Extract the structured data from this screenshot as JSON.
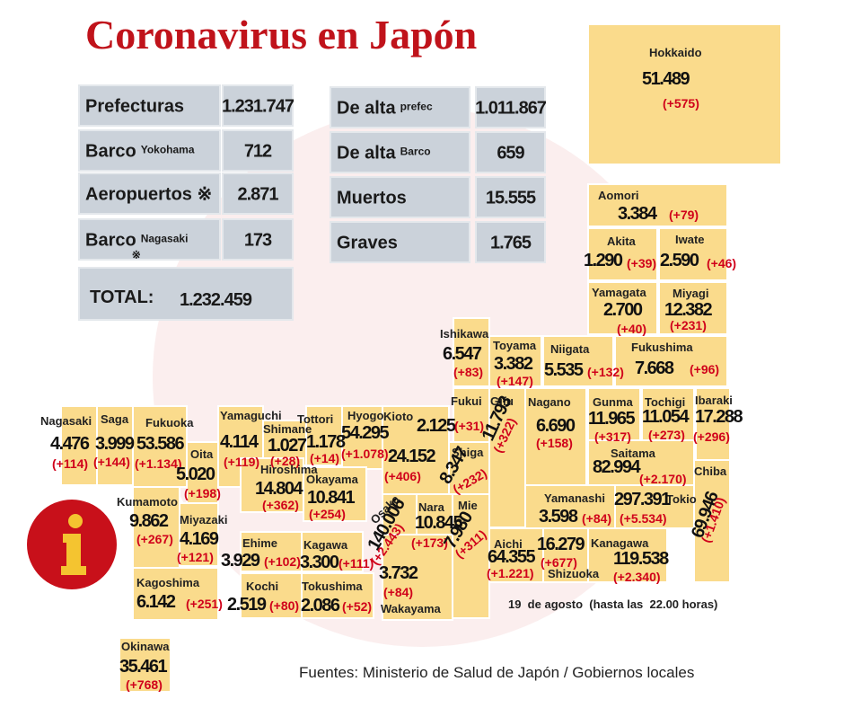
{
  "title": "Coronavirus en Japón",
  "summary": [
    {
      "label": "Prefecturas",
      "value": "1.231.747"
    },
    {
      "label": "Barco",
      "sublabel": "Yokohama",
      "value": "712"
    },
    {
      "label": "Aeropuertos ※",
      "value": "2.871"
    },
    {
      "label": "Barco",
      "sublabel": "Nagasaki",
      "mark": "※",
      "value": "173"
    },
    {
      "label": "De alta",
      "sublabel": "prefec",
      "value": "1.011.867"
    },
    {
      "label": "De alta",
      "sublabel": "Barco",
      "value": "659"
    },
    {
      "label": "Muertos",
      "value": "15.555"
    },
    {
      "label": "Graves",
      "value": "1.765"
    }
  ],
  "total": {
    "label": "TOTAL:",
    "value": "1.232.459"
  },
  "prefectures": [
    {
      "name": "Hokkaido",
      "total": "51.489",
      "new": "(+575)"
    },
    {
      "name": "Aomori",
      "total": "3.384",
      "new": "(+79)"
    },
    {
      "name": "Akita",
      "total": "1.290",
      "new": "(+39)"
    },
    {
      "name": "Iwate",
      "total": "2.590",
      "new": "(+46)"
    },
    {
      "name": "Yamagata",
      "total": "2.700",
      "new": "(+40)"
    },
    {
      "name": "Miyagi",
      "total": "12.382",
      "new": "(+231)"
    },
    {
      "name": "Ishikawa",
      "total": "6.547",
      "new": "(+83)"
    },
    {
      "name": "Toyama",
      "total": "3.382",
      "new": "(+147)"
    },
    {
      "name": "Niigata",
      "total": "5.535",
      "new": "(+132)"
    },
    {
      "name": "Fukushima",
      "total": "7.668",
      "new": "(+96)"
    },
    {
      "name": "Fukui",
      "total": "2.125",
      "new": "(+31)"
    },
    {
      "name": "Gifu",
      "total": "11.793",
      "new": "(+322)"
    },
    {
      "name": "Nagano",
      "total": "6.690",
      "new": "(+158)"
    },
    {
      "name": "Gunma",
      "total": "11.965",
      "new": "(+317)"
    },
    {
      "name": "Tochigi",
      "total": "11.054",
      "new": "(+273)"
    },
    {
      "name": "Ibaraki",
      "total": "17.288",
      "new": "(+296)"
    },
    {
      "name": "Nagasaki",
      "total": "4.476",
      "new": "(+114)"
    },
    {
      "name": "Saga",
      "total": "3.999",
      "new": "(+144)"
    },
    {
      "name": "Fukuoka",
      "total": "53.586",
      "new": "(+1.134)"
    },
    {
      "name": "Yamaguchi",
      "total": "4.114",
      "new": "(+119)"
    },
    {
      "name": "Shimane",
      "total": "1.027",
      "new": "(+28)"
    },
    {
      "name": "Tottori",
      "total": "1.178",
      "new": "(+14)"
    },
    {
      "name": "Hyogo",
      "total": "54.295",
      "new": "(+1.078)"
    },
    {
      "name": "Kioto",
      "total": "24.152",
      "new": "(+406)"
    },
    {
      "name": "Shiga",
      "total": "8.347",
      "new": "(+232)"
    },
    {
      "name": "Saitama",
      "total": "82.994",
      "new": "(+2.170)"
    },
    {
      "name": "Chiba",
      "total": "69.946",
      "new": "(+1.410)"
    },
    {
      "name": "Oita",
      "total": "5.020",
      "new": "(+198)"
    },
    {
      "name": "Hiroshima",
      "total": "14.804",
      "new": "(+362)"
    },
    {
      "name": "Okayama",
      "total": "10.841",
      "new": "(+254)"
    },
    {
      "name": "Kumamoto",
      "total": "9.862",
      "new": "(+267)"
    },
    {
      "name": "Miyazaki",
      "total": "4.169",
      "new": "(+121)"
    },
    {
      "name": "Kagoshima",
      "total": "6.142",
      "new": "(+251)"
    },
    {
      "name": "Osaka",
      "total": "140.006",
      "new": "(+2.443)"
    },
    {
      "name": "Nara",
      "total": "10.845",
      "new": "(+173)"
    },
    {
      "name": "Mie",
      "total": "7.980",
      "new": "(+311)"
    },
    {
      "name": "Yamanashi",
      "total": "3.598",
      "new": "(+84)"
    },
    {
      "name": "Tokio",
      "total": "297.391",
      "new": "(+5.534)"
    },
    {
      "name": "Aichi",
      "total": "64.355",
      "new": "(+1.221)"
    },
    {
      "name": "Shizuoka",
      "total": "16.279",
      "new": "(+677)"
    },
    {
      "name": "Kanagawa",
      "total": "119.538",
      "new": "(+2.340)"
    },
    {
      "name": "Ehime",
      "total": "3.929",
      "new": "(+102)"
    },
    {
      "name": "Kagawa",
      "total": "3.300",
      "new": "(+111)"
    },
    {
      "name": "Kochi",
      "total": "2.519",
      "new": "(+80)"
    },
    {
      "name": "Tokushima",
      "total": "2.086",
      "new": "(+52)"
    },
    {
      "name": "Wakayama",
      "total": "3.732",
      "new": "(+84)"
    },
    {
      "name": "Okinawa",
      "total": "35.461",
      "new": "(+768)"
    }
  ],
  "date_note": "19  de agosto  (hasta las  22.00 horas)",
  "sources": "Fuentes: Ministerio de Salud de Japón / Gobiernos locales"
}
